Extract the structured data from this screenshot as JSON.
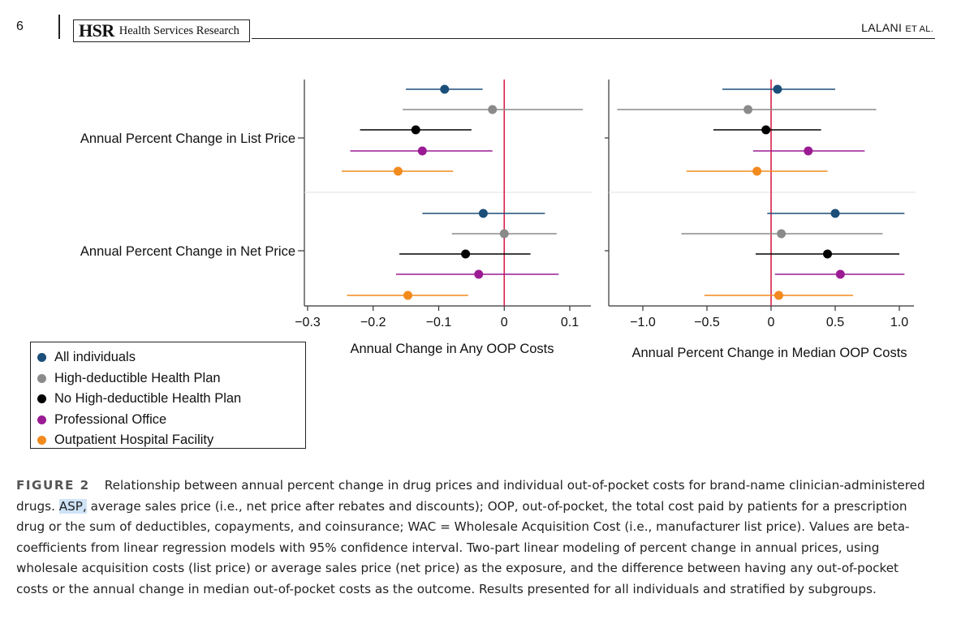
{
  "header": {
    "page_number": "6",
    "journal_abbr": "HSR",
    "journal_name": "Health Services Research",
    "author": "LALANI",
    "author_suffix": "ET AL."
  },
  "legend": {
    "items": [
      {
        "label": "All individuals",
        "color": "#1b4f79"
      },
      {
        "label": "High-deductible Health Plan",
        "color": "#8a8a8a"
      },
      {
        "label": "No High-deductible Health Plan",
        "color": "#000000"
      },
      {
        "label": "Professional Office",
        "color": "#9b1b94"
      },
      {
        "label": "Outpatient Hospital Facility",
        "color": "#f28a1e"
      }
    ]
  },
  "caption": {
    "label": "FIGURE 2",
    "text_before": "Relationship between annual percent change in drug prices and individual out-of-pocket costs for brand-name clinician-administered drugs. ",
    "highlight": "ASP,",
    "text_after": " average sales price (i.e., net price after rebates and discounts); OOP, out-of-pocket, the total cost paid by patients for a prescription drug or the sum of deductibles, copayments, and coinsurance; WAC = Wholesale Acquisition Cost (i.e., manufacturer list price). Values are beta-coefficients from linear regression models with 95% confidence interval. Two-part linear modeling of percent change in annual prices, using wholesale acquisition costs (list price) or average sales price (net price) as the exposure, and the difference between having any out-of-pocket costs or the annual change in median out-of-pocket costs as the outcome. Results presented for all individuals and stratified by subgroups."
  },
  "chart_data": [
    {
      "type": "scatter",
      "xlabel": "Annual Change in Any OOP Costs",
      "ylabel": "",
      "xlim": [
        -0.32,
        0.13
      ],
      "xticks": [
        -0.3,
        -0.2,
        -0.1,
        0,
        0.1
      ],
      "xtick_labels": [
        "−0.3",
        "−0.2",
        "−0.1",
        "0",
        "0.1"
      ],
      "reference_line": 0,
      "groups": [
        "Annual Percent Change in List Price",
        "Annual Percent Change in Net Price"
      ],
      "series": [
        {
          "name": "All individuals",
          "color": "#1b4f79",
          "estimates": [
            -0.091,
            -0.032
          ],
          "ci_low": [
            -0.15,
            -0.125
          ],
          "ci_high": [
            -0.033,
            0.062
          ]
        },
        {
          "name": "High-deductible Health Plan",
          "color": "#8a8a8a",
          "estimates": [
            -0.018,
            0.0
          ],
          "ci_low": [
            -0.155,
            -0.08
          ],
          "ci_high": [
            0.12,
            0.08
          ]
        },
        {
          "name": "No High-deductible Health Plan",
          "color": "#000000",
          "estimates": [
            -0.135,
            -0.059
          ],
          "ci_low": [
            -0.22,
            -0.16
          ],
          "ci_high": [
            -0.05,
            0.04
          ]
        },
        {
          "name": "Professional Office",
          "color": "#9b1b94",
          "estimates": [
            -0.125,
            -0.039
          ],
          "ci_low": [
            -0.235,
            -0.165
          ],
          "ci_high": [
            -0.018,
            0.083
          ]
        },
        {
          "name": "Outpatient Hospital Facility",
          "color": "#f28a1e",
          "estimates": [
            -0.162,
            -0.147
          ],
          "ci_low": [
            -0.248,
            -0.24
          ],
          "ci_high": [
            -0.078,
            -0.055
          ]
        }
      ]
    },
    {
      "type": "scatter",
      "xlabel": "Annual Percent Change in Median OOP Costs",
      "ylabel": "",
      "xlim": [
        -1.25,
        1.1
      ],
      "xticks": [
        -1.0,
        -0.5,
        0,
        0.5,
        1.0
      ],
      "xtick_labels": [
        "−1.0",
        "−0.5",
        "0",
        "0.5",
        "1.0"
      ],
      "reference_line": 0,
      "groups": [
        "Annual Percent Change in List Price",
        "Annual Percent Change in Net Price"
      ],
      "series": [
        {
          "name": "All individuals",
          "color": "#1b4f79",
          "estimates": [
            0.05,
            0.5
          ],
          "ci_low": [
            -0.38,
            -0.03
          ],
          "ci_high": [
            0.5,
            1.04
          ]
        },
        {
          "name": "High-deductible Health Plan",
          "color": "#8a8a8a",
          "estimates": [
            -0.18,
            0.08
          ],
          "ci_low": [
            -1.2,
            -0.7
          ],
          "ci_high": [
            0.82,
            0.87
          ]
        },
        {
          "name": "No High-deductible Health Plan",
          "color": "#000000",
          "estimates": [
            -0.04,
            0.44
          ],
          "ci_low": [
            -0.45,
            -0.12
          ],
          "ci_high": [
            0.39,
            1.0
          ]
        },
        {
          "name": "Professional Office",
          "color": "#9b1b94",
          "estimates": [
            0.29,
            0.54
          ],
          "ci_low": [
            -0.14,
            0.03
          ],
          "ci_high": [
            0.73,
            1.04
          ]
        },
        {
          "name": "Outpatient Hospital Facility",
          "color": "#f28a1e",
          "estimates": [
            -0.11,
            0.06
          ],
          "ci_low": [
            -0.66,
            -0.52
          ],
          "ci_high": [
            0.44,
            0.64
          ]
        }
      ]
    }
  ]
}
